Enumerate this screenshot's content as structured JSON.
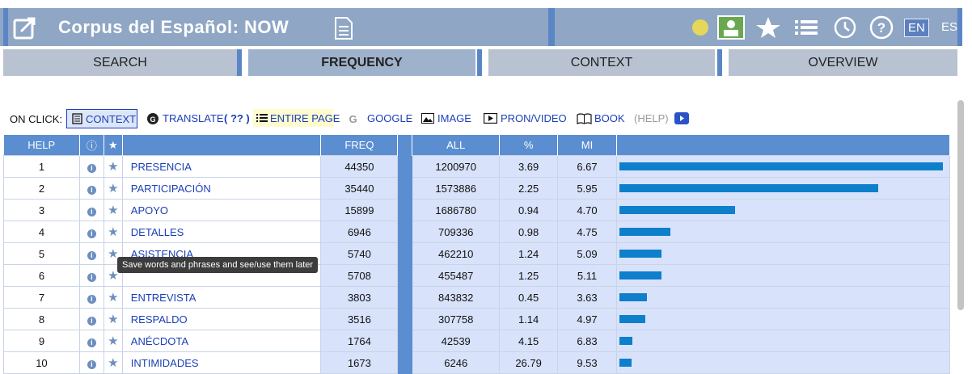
{
  "header": {
    "title": "Corpus del Español: NOW",
    "lang_en": "EN",
    "lang_es": "ES"
  },
  "tabs": [
    {
      "label": "SEARCH"
    },
    {
      "label": "FREQUENCY"
    },
    {
      "label": "CONTEXT"
    },
    {
      "label": "OVERVIEW"
    }
  ],
  "onclick": {
    "label": "ON CLICK:",
    "context": "CONTEXT",
    "translate": "TRANSLATE",
    "translate_extra": "( ?? )",
    "entire_page": "ENTIRE PAGE",
    "google": "GOOGLE",
    "image": "IMAGE",
    "pron_video": "PRON/VIDEO",
    "book": "BOOK",
    "help": "(HELP)"
  },
  "table": {
    "headers": {
      "help": "HELP",
      "info": "ⓘ",
      "star": "★",
      "freq": "FREQ",
      "all": "ALL",
      "pct": "%",
      "mi": "MI"
    },
    "rows": [
      {
        "n": "1",
        "word": "PRESENCIA",
        "freq": "44350",
        "all": "1200970",
        "pct": "3.69",
        "mi": "6.67",
        "bar": 1.0
      },
      {
        "n": "2",
        "word": "PARTICIPACIÓN",
        "freq": "35440",
        "all": "1573886",
        "pct": "2.25",
        "mi": "5.95",
        "bar": 0.799
      },
      {
        "n": "3",
        "word": "APOYO",
        "freq": "15899",
        "all": "1686780",
        "pct": "0.94",
        "mi": "4.70",
        "bar": 0.358
      },
      {
        "n": "4",
        "word": "DETALLES",
        "freq": "6946",
        "all": "709336",
        "pct": "0.98",
        "mi": "4.75",
        "bar": 0.157
      },
      {
        "n": "5",
        "word": "ASISTENCIA",
        "freq": "5740",
        "all": "462210",
        "pct": "1.24",
        "mi": "5.09",
        "bar": 0.129
      },
      {
        "n": "6",
        "word": "",
        "freq": "5708",
        "all": "455487",
        "pct": "1.25",
        "mi": "5.11",
        "bar": 0.129
      },
      {
        "n": "7",
        "word": "ENTREVISTA",
        "freq": "3803",
        "all": "843832",
        "pct": "0.45",
        "mi": "3.63",
        "bar": 0.086
      },
      {
        "n": "8",
        "word": "RESPALDO",
        "freq": "3516",
        "all": "307758",
        "pct": "1.14",
        "mi": "4.97",
        "bar": 0.079
      },
      {
        "n": "9",
        "word": "ANÉCDOTA",
        "freq": "1764",
        "all": "42539",
        "pct": "4.15",
        "mi": "6.83",
        "bar": 0.04
      },
      {
        "n": "10",
        "word": "INTIMIDADES",
        "freq": "1673",
        "all": "6246",
        "pct": "26.79",
        "mi": "9.53",
        "bar": 0.038
      }
    ]
  },
  "tooltip": "Save words and phrases and see/use them later"
}
